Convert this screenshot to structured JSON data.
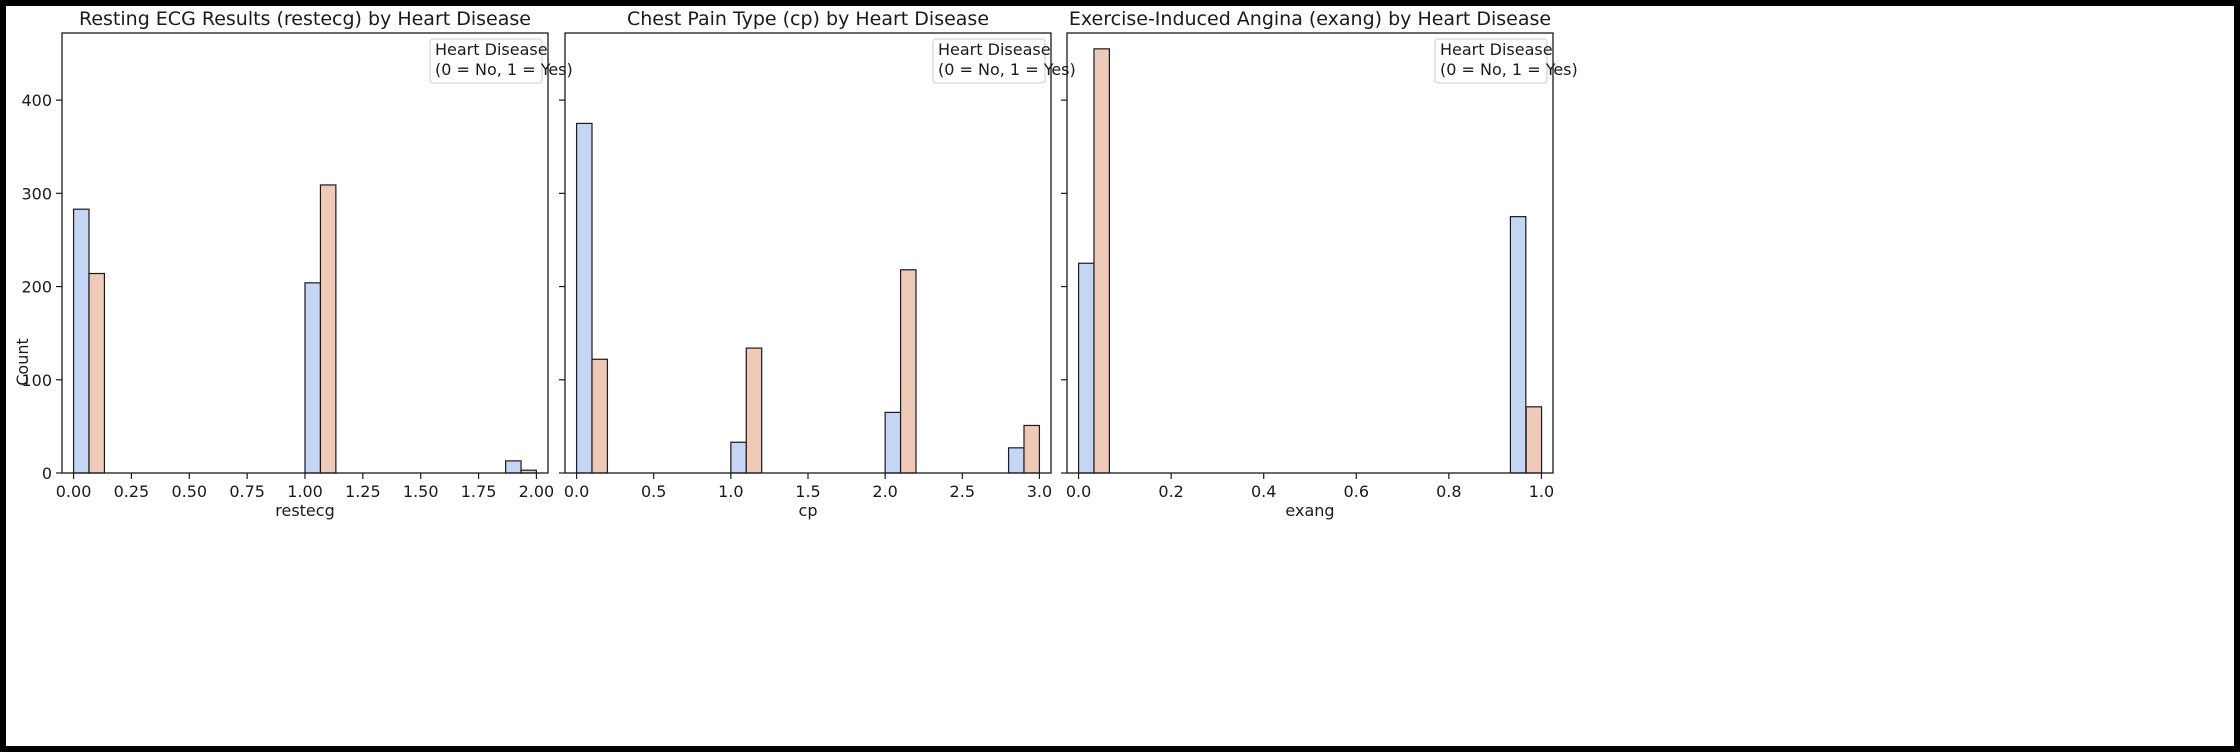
{
  "figure": {
    "ylabel": "Count",
    "colors": {
      "no": "#c5d5f4",
      "yes": "#f0cab9",
      "edge": "#1a1a1a"
    }
  },
  "chart_data": [
    {
      "type": "bar",
      "title": "Resting ECG Results (restecg) by Heart Disease",
      "xlabel": "restecg",
      "ylabel": "Count",
      "xlim": [
        -0.05,
        2.05
      ],
      "ylim": [
        0,
        472
      ],
      "xticks": [
        0.0,
        0.25,
        0.5,
        0.75,
        1.0,
        1.25,
        1.5,
        1.75,
        2.0
      ],
      "xtick_labels": [
        "0.00",
        "0.25",
        "0.50",
        "0.75",
        "1.00",
        "1.25",
        "1.50",
        "1.75",
        "2.00"
      ],
      "yticks": [
        0,
        100,
        200,
        300,
        400
      ],
      "legend": {
        "title_line1": "Heart Disease",
        "title_line2": "(0 = No, 1 = Yes)",
        "placement": "top-right"
      },
      "bin_width": 0.0667,
      "series": [
        {
          "group": "0",
          "bars": [
            {
              "x0": 0.0,
              "value": 283
            },
            {
              "x0": 1.0,
              "value": 204
            },
            {
              "x0": 1.867,
              "value": 13
            }
          ]
        },
        {
          "group": "1",
          "bars": [
            {
              "x0": 0.0667,
              "value": 214
            },
            {
              "x0": 1.0667,
              "value": 309
            },
            {
              "x0": 1.933,
              "value": 3
            }
          ]
        }
      ],
      "grid": false
    },
    {
      "type": "bar",
      "title": "Chest Pain Type (cp) by Heart Disease",
      "xlabel": "cp",
      "ylabel": "",
      "xlim": [
        -0.075,
        3.075
      ],
      "ylim": [
        0,
        472
      ],
      "xticks": [
        0.0,
        0.5,
        1.0,
        1.5,
        2.0,
        2.5,
        3.0
      ],
      "xtick_labels": [
        "0.0",
        "0.5",
        "1.0",
        "1.5",
        "2.0",
        "2.5",
        "3.0"
      ],
      "yticks": [
        0,
        100,
        200,
        300,
        400
      ],
      "legend": {
        "title_line1": "Heart Disease",
        "title_line2": "(0 = No, 1 = Yes)",
        "placement": "top-right"
      },
      "bin_width": 0.1,
      "series": [
        {
          "group": "0",
          "bars": [
            {
              "x0": 0.0,
              "value": 375
            },
            {
              "x0": 1.0,
              "value": 33
            },
            {
              "x0": 2.0,
              "value": 65
            },
            {
              "x0": 2.8,
              "value": 27
            }
          ]
        },
        {
          "group": "1",
          "bars": [
            {
              "x0": 0.1,
              "value": 122
            },
            {
              "x0": 1.1,
              "value": 134
            },
            {
              "x0": 2.1,
              "value": 218
            },
            {
              "x0": 2.9,
              "value": 51
            }
          ]
        }
      ],
      "grid": false
    },
    {
      "type": "bar",
      "title": "Exercise-Induced Angina (exang) by Heart Disease",
      "xlabel": "exang",
      "ylabel": "",
      "xlim": [
        -0.025,
        1.025
      ],
      "ylim": [
        0,
        472
      ],
      "xticks": [
        0.0,
        0.2,
        0.4,
        0.6,
        0.8,
        1.0
      ],
      "xtick_labels": [
        "0.0",
        "0.2",
        "0.4",
        "0.6",
        "0.8",
        "1.0"
      ],
      "yticks": [
        0,
        100,
        200,
        300,
        400
      ],
      "legend": {
        "title_line1": "Heart Disease",
        "title_line2": "(0 = No, 1 = Yes)",
        "placement": "top-right"
      },
      "bin_width": 0.0333,
      "series": [
        {
          "group": "0",
          "bars": [
            {
              "x0": 0.0,
              "value": 225
            },
            {
              "x0": 0.933,
              "value": 275
            }
          ]
        },
        {
          "group": "1",
          "bars": [
            {
              "x0": 0.0333,
              "value": 455
            },
            {
              "x0": 0.967,
              "value": 71
            }
          ]
        }
      ],
      "grid": false
    }
  ]
}
